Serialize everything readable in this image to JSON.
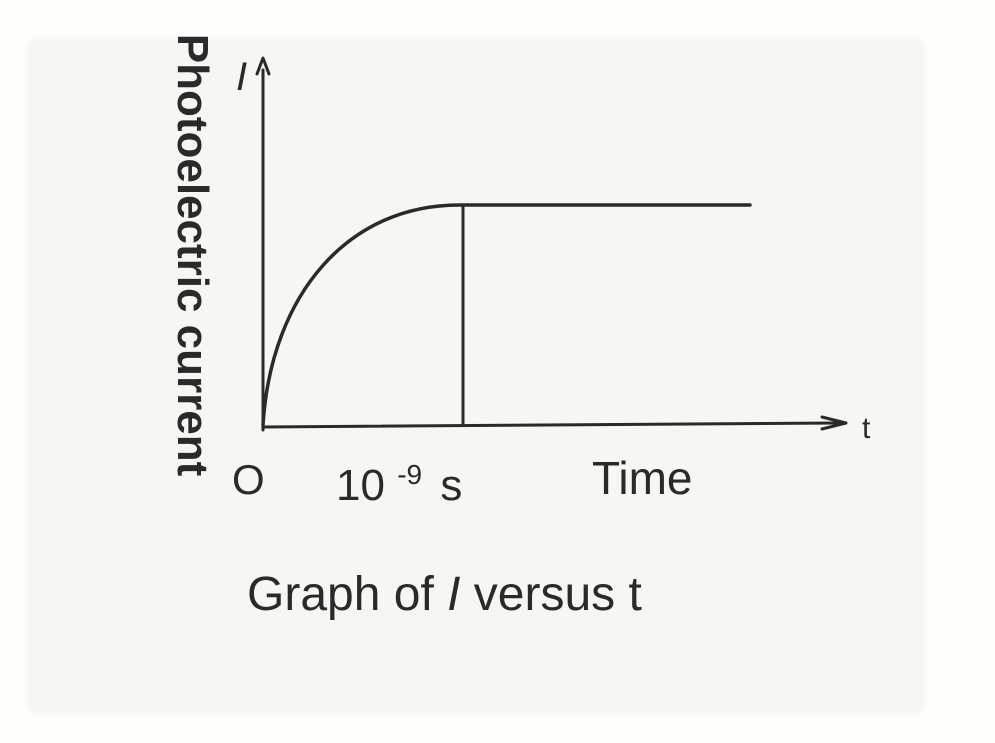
{
  "figure": {
    "caption_prefix": "Graph of ",
    "caption_var": "I",
    "caption_suffix": " versus t"
  },
  "chart_data": {
    "type": "line",
    "title": "",
    "xlabel": "Time",
    "ylabel": "Photoelectric current",
    "x_axis_symbol": "t",
    "y_axis_symbol": "I",
    "origin_label": "O",
    "x_tick_base": "10",
    "x_tick_exp": "-9",
    "x_tick_unit": "s",
    "x_tick_value": 1e-09,
    "marked_time_s": 1e-09,
    "series": [
      {
        "values_description_points": [
          {
            "x": 0,
            "y": 0
          },
          {
            "x": 1e-09,
            "y": 1
          },
          {
            "x": 2.5e-09,
            "y": 1
          }
        ]
      }
    ],
    "grid": false,
    "legend": "none",
    "colors": {
      "ink": "#2a2a2a",
      "paper": "#f6f6f2"
    }
  }
}
